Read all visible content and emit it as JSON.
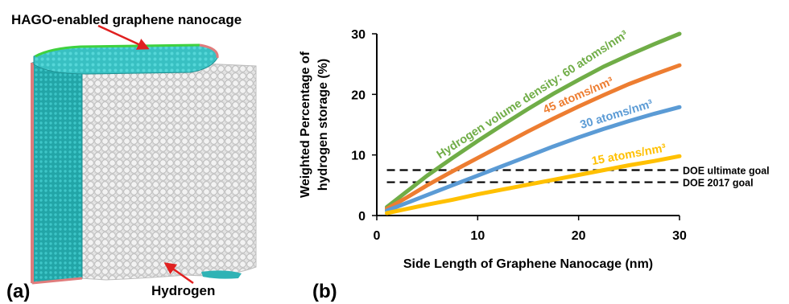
{
  "panel_a": {
    "label": "(a)",
    "top_annotation": "HAGO-enabled graphene nanocage",
    "bottom_annotation": "Hydrogen"
  },
  "panel_b": {
    "label": "(b)"
  },
  "colors": {
    "teal": "#2fb3b5",
    "green_edge": "#3fd13f",
    "pink_edge": "#e07c7c",
    "arrow": "#e02020",
    "hydrogen": "#dedede"
  },
  "chart_data": {
    "type": "line",
    "xlabel": "Side Length of Graphene Nanocage (nm)",
    "ylabel": [
      "Weighted Percentage of",
      "hydrogen storage (%)"
    ],
    "xlim": [
      0,
      30
    ],
    "ylim": [
      0,
      30
    ],
    "x_ticks": [
      "0",
      "10",
      "20",
      "30"
    ],
    "y_ticks": [
      "0",
      "10",
      "20",
      "30"
    ],
    "grid": false,
    "series": [
      {
        "name": "Hydrogen volume density: 60 atoms/nm³",
        "color": "#70ad47",
        "x": [
          1,
          3,
          5,
          7.5,
          10,
          12.5,
          15,
          17.5,
          20,
          22.5,
          25,
          27.5,
          30
        ],
        "y": [
          1.4,
          4.0,
          6.6,
          9.5,
          12.3,
          15.0,
          17.6,
          20.1,
          22.4,
          24.6,
          26.5,
          28.3,
          30.0
        ]
      },
      {
        "name": "45 atoms/nm³",
        "color": "#ed7d31",
        "x": [
          1,
          3,
          5,
          7.5,
          10,
          12.5,
          15,
          17.5,
          20,
          22.5,
          25,
          27.5,
          30
        ],
        "y": [
          1.1,
          3.0,
          5.0,
          7.3,
          9.5,
          11.7,
          13.9,
          16.0,
          18.0,
          19.9,
          21.7,
          23.3,
          24.8
        ]
      },
      {
        "name": "30 atoms/nm³",
        "color": "#5b9bd5",
        "x": [
          1,
          3,
          5,
          7.5,
          10,
          12.5,
          15,
          17.5,
          20,
          22.5,
          25,
          27.5,
          30
        ],
        "y": [
          0.8,
          2.1,
          3.4,
          5.0,
          6.6,
          8.2,
          9.8,
          11.4,
          12.9,
          14.3,
          15.6,
          16.8,
          17.9
        ]
      },
      {
        "name": "15 atoms/nm³",
        "color": "#ffc000",
        "x": [
          1,
          3,
          5,
          7.5,
          10,
          12.5,
          15,
          17.5,
          20,
          22.5,
          25,
          27.5,
          30
        ],
        "y": [
          0.4,
          1.1,
          1.8,
          2.6,
          3.5,
          4.3,
          5.1,
          5.9,
          6.7,
          7.5,
          8.3,
          9.0,
          9.8
        ]
      }
    ],
    "reference_lines": [
      {
        "name": "DOE ultimate goal",
        "y": 7.5
      },
      {
        "name": "DOE 2017 goal",
        "y": 5.5
      }
    ]
  }
}
